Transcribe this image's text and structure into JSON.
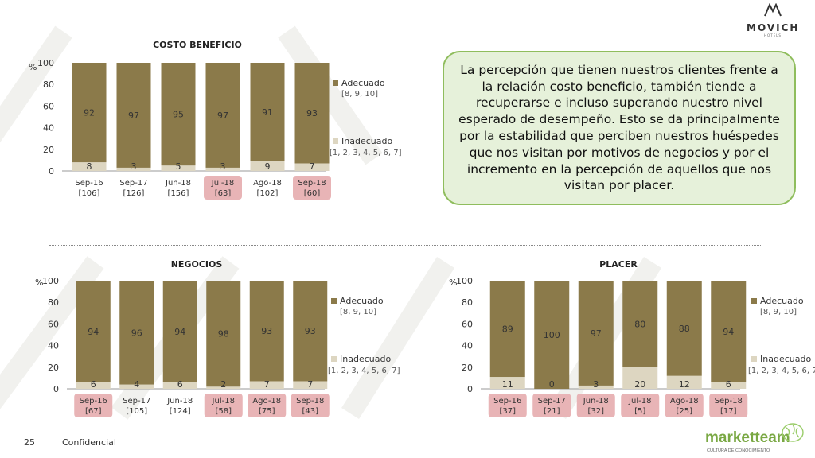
{
  "page": {
    "number": "25",
    "footer": "Confidencial"
  },
  "logo": {
    "text": "MOVICH",
    "sub": "HOTELS"
  },
  "brand": {
    "name": "marketteam",
    "tagline": "CULTURA DE CONOCIMIENTO"
  },
  "callout": {
    "text": "La percepción que tienen nuestros clientes frente a la relación costo beneficio, también tiende a recuperarse e incluso superando nuestro nivel esperado de desempeño. Esto se da principalmente por la estabilidad que perciben nuestros huéspedes que nos visitan por motivos de negocios y por el incremento en la percepción de aquellos que nos visitan por placer."
  },
  "colors": {
    "adecuado": "#8b7a4a",
    "inadecuado": "#ddd6c1",
    "highlight": "#e8b4b6",
    "callout_border": "#8fbd5d",
    "callout_bg": "#e6f1da"
  },
  "legend": {
    "adecuado": "Adecuado",
    "adecuado_sub": "[8, 9, 10]",
    "inadecuado": "Inadecuado",
    "inadecuado_sub": "[1, 2, 3, 4, 5, 6, 7]"
  },
  "chart_data": [
    {
      "type": "bar",
      "stacked": true,
      "title": "COSTO BENEFICIO",
      "ylabel": "%",
      "ylim": [
        0,
        100
      ],
      "yticks": [
        0,
        20,
        40,
        60,
        80,
        100
      ],
      "categories": [
        "Sep-16",
        "Sep-17",
        "Jun-18",
        "Jul-18",
        "Ago-18",
        "Sep-18"
      ],
      "sublabels": [
        "[106]",
        "[126]",
        "[156]",
        "[63]",
        "[102]",
        "[60]"
      ],
      "highlighted": [
        false,
        false,
        false,
        true,
        false,
        true
      ],
      "series": [
        {
          "name": "Inadecuado",
          "values": [
            8,
            3,
            5,
            3,
            9,
            7
          ]
        },
        {
          "name": "Adecuado",
          "values": [
            92,
            97,
            95,
            97,
            91,
            93
          ]
        }
      ],
      "legend_position": "right"
    },
    {
      "type": "bar",
      "stacked": true,
      "title": "NEGOCIOS",
      "ylabel": "%",
      "ylim": [
        0,
        100
      ],
      "yticks": [
        0,
        20,
        40,
        60,
        80,
        100
      ],
      "categories": [
        "Sep-16",
        "Sep-17",
        "Jun-18",
        "Jul-18",
        "Ago-18",
        "Sep-18"
      ],
      "sublabels": [
        "[67]",
        "[105]",
        "[124]",
        "[58]",
        "[75]",
        "[43]"
      ],
      "highlighted": [
        true,
        false,
        false,
        true,
        true,
        true
      ],
      "series": [
        {
          "name": "Inadecuado",
          "values": [
            6,
            4,
            6,
            2,
            7,
            7
          ]
        },
        {
          "name": "Adecuado",
          "values": [
            94,
            96,
            94,
            98,
            93,
            93
          ]
        }
      ],
      "legend_position": "right"
    },
    {
      "type": "bar",
      "stacked": true,
      "title": "PLACER",
      "ylabel": "%",
      "ylim": [
        0,
        100
      ],
      "yticks": [
        0,
        20,
        40,
        60,
        80,
        100
      ],
      "categories": [
        "Sep-16",
        "Sep-17",
        "Jun-18",
        "Jul-18",
        "Ago-18",
        "Sep-18"
      ],
      "sublabels": [
        "[37]",
        "[21]",
        "[32]",
        "[5]",
        "[25]",
        "[17]"
      ],
      "highlighted": [
        true,
        true,
        true,
        true,
        true,
        true
      ],
      "series": [
        {
          "name": "Inadecuado",
          "values": [
            11,
            0,
            3,
            20,
            12,
            6
          ]
        },
        {
          "name": "Adecuado",
          "values": [
            89,
            100,
            97,
            80,
            88,
            94
          ]
        }
      ],
      "legend_position": "right"
    }
  ]
}
